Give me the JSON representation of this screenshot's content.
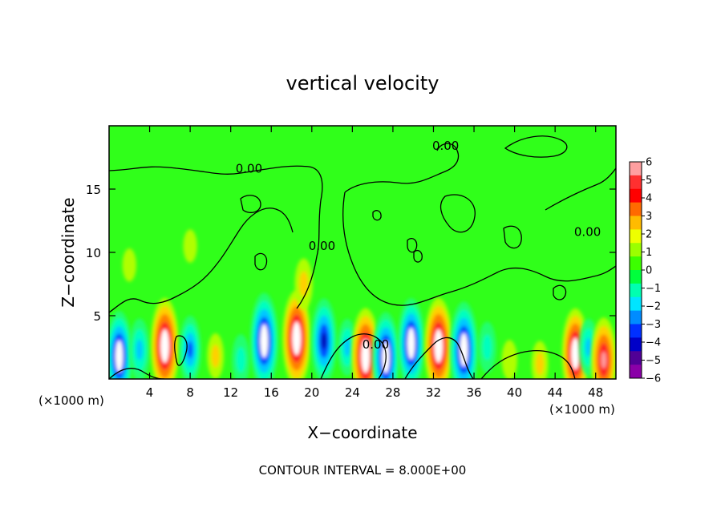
{
  "chart_data": {
    "type": "heatmap",
    "title": "vertical velocity",
    "xlabel": "X−coordinate",
    "ylabel": "Z−coordinate",
    "x_unit_label": "(×1000 m)",
    "x_unit_label_right": "(×1000 m)",
    "xlim": [
      0,
      50
    ],
    "ylim": [
      0,
      20
    ],
    "xticks": [
      4,
      8,
      12,
      16,
      20,
      24,
      28,
      32,
      36,
      40,
      44,
      48
    ],
    "yticks": [
      5,
      10,
      15
    ],
    "footer": "CONTOUR INTERVAL = 8.000E+00",
    "contour_label": "0.00",
    "contour_label_positions": [
      [
        13.8,
        16.3
      ],
      [
        33.2,
        18.1
      ],
      [
        21.0,
        10.2
      ],
      [
        26.3,
        2.4
      ],
      [
        47.2,
        11.3
      ]
    ],
    "colorbar": {
      "range": [
        -6,
        6
      ],
      "ticks": [
        "6",
        "5",
        "4",
        "3",
        "2",
        "1",
        "0",
        "−1",
        "−2",
        "−3",
        "−4",
        "−5",
        "−6"
      ],
      "colors": [
        "#ff9fa0",
        "#ff3030",
        "#ff0000",
        "#ff6a00",
        "#ffbb00",
        "#eeff00",
        "#9bff00",
        "#3cff00",
        "#00ff3c",
        "#00ffb0",
        "#00e5ff",
        "#008cff",
        "#0030ff",
        "#0000c8",
        "#500096",
        "#8a00a8"
      ]
    },
    "background_color": "#30ff1a",
    "cells": [
      {
        "x": 1.0,
        "z": 1.8,
        "value": -5.5
      },
      {
        "x": 3.0,
        "z": 2.3,
        "value": -3.0
      },
      {
        "x": 5.5,
        "z": 2.6,
        "value": 6.0
      },
      {
        "x": 8.0,
        "z": 2.3,
        "value": -3.5
      },
      {
        "x": 10.5,
        "z": 1.8,
        "value": 1.5
      },
      {
        "x": 13.0,
        "z": 1.5,
        "value": -2.0
      },
      {
        "x": 15.3,
        "z": 3.0,
        "value": -6.0
      },
      {
        "x": 18.5,
        "z": 3.2,
        "value": 6.0
      },
      {
        "x": 21.2,
        "z": 3.0,
        "value": -5.0
      },
      {
        "x": 23.5,
        "z": 2.5,
        "value": -2.5
      },
      {
        "x": 25.3,
        "z": 1.8,
        "value": 6.0
      },
      {
        "x": 27.3,
        "z": 1.7,
        "value": -5.5
      },
      {
        "x": 29.8,
        "z": 2.8,
        "value": -5.5
      },
      {
        "x": 32.5,
        "z": 2.6,
        "value": 6.0
      },
      {
        "x": 35.0,
        "z": 2.3,
        "value": -6.0
      },
      {
        "x": 37.3,
        "z": 2.5,
        "value": -2.0
      },
      {
        "x": 39.5,
        "z": 1.5,
        "value": 1.0
      },
      {
        "x": 42.5,
        "z": 1.2,
        "value": 1.5
      },
      {
        "x": 46.0,
        "z": 2.0,
        "value": 5.5
      },
      {
        "x": 47.3,
        "z": 2.5,
        "value": -2.5
      },
      {
        "x": 48.8,
        "z": 1.5,
        "value": 5.0
      },
      {
        "x": 19.2,
        "z": 7.5,
        "value": 2.0
      },
      {
        "x": 2.0,
        "z": 9.0,
        "value": 0.4
      },
      {
        "x": 8.0,
        "z": 10.5,
        "value": 0.4
      }
    ]
  }
}
